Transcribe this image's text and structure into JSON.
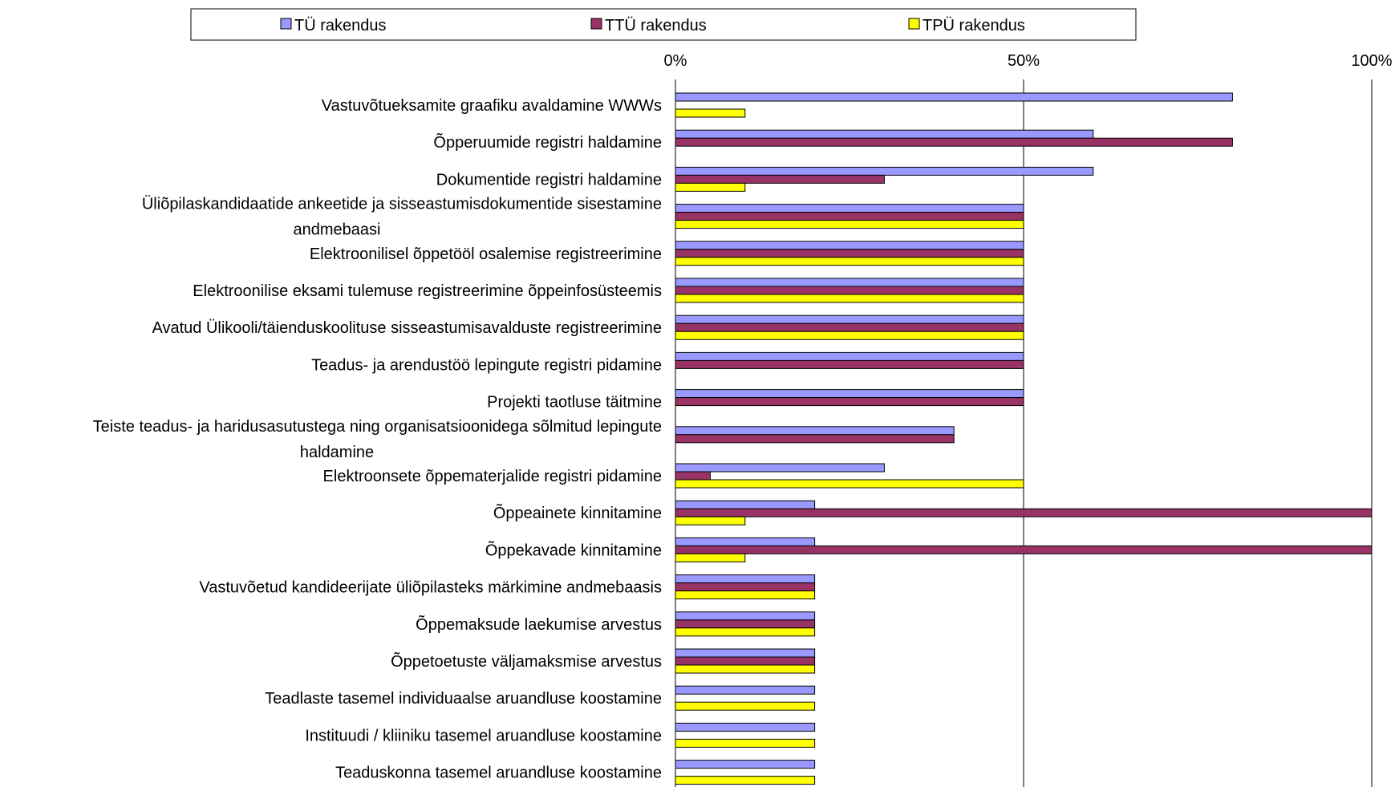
{
  "chart_data": {
    "type": "bar",
    "orientation": "horizontal",
    "title": "",
    "xlabel": "",
    "ylabel": "",
    "xlim": [
      0,
      100
    ],
    "grid": true,
    "legend_position": "top",
    "ticks": [
      "0%",
      "50%",
      "100%"
    ],
    "tick_values": [
      0,
      50,
      100
    ],
    "categories": [
      [
        "Vastuvõtueksamite graafiku avaldamine WWWs"
      ],
      [
        "Õpperuumide registri haldamine"
      ],
      [
        "Dokumentide registri haldamine"
      ],
      [
        "Üliõpilaskandidaatide ankeetide ja sisseastumisdokumentide sisestamine",
        "andmebaasi"
      ],
      [
        "Elektroonilisel õppetööl osalemise registreerimine"
      ],
      [
        "Elektroonilise eksami tulemuse registreerimine õppeinfosüsteemis"
      ],
      [
        "Avatud Ülikooli/täienduskoolituse sisseastumisavalduste registreerimine"
      ],
      [
        "Teadus- ja arendustöö lepingute registri pidamine"
      ],
      [
        "Projekti taotluse täitmine"
      ],
      [
        "Teiste teadus- ja haridusasutustega ning organisatsioonidega sõlmitud lepingute",
        "haldamine"
      ],
      [
        "Elektroonsete õppematerjalide registri pidamine"
      ],
      [
        "Õppeainete kinnitamine"
      ],
      [
        "Õppekavade kinnitamine"
      ],
      [
        "Vastuvõetud kandideerijate üliõpilasteks märkimine andmebaasis"
      ],
      [
        "Õppemaksude laekumise arvestus"
      ],
      [
        "Õppetoetuste väljamaksmise arvestus"
      ],
      [
        "Teadlaste tasemel individuaalse aruandluse koostamine"
      ],
      [
        "Instituudi / kliiniku tasemel aruandluse koostamine"
      ],
      [
        "Teaduskonna tasemel aruandluse koostamine"
      ]
    ],
    "series": [
      {
        "name": "TÜ rakendus",
        "color": "#9999ff",
        "values": [
          80,
          60,
          60,
          50,
          50,
          50,
          50,
          50,
          50,
          40,
          30,
          20,
          20,
          20,
          20,
          20,
          20,
          20,
          20
        ]
      },
      {
        "name": "TTÜ rakendus",
        "color": "#993366",
        "values": [
          0,
          80,
          30,
          50,
          50,
          50,
          50,
          50,
          50,
          40,
          5,
          100,
          100,
          20,
          20,
          20,
          0,
          0,
          0
        ]
      },
      {
        "name": "TPÜ rakendus",
        "color": "#ffff00",
        "values": [
          10,
          0,
          10,
          50,
          50,
          50,
          50,
          0,
          0,
          0,
          50,
          10,
          10,
          20,
          20,
          20,
          20,
          20,
          20
        ]
      }
    ]
  }
}
